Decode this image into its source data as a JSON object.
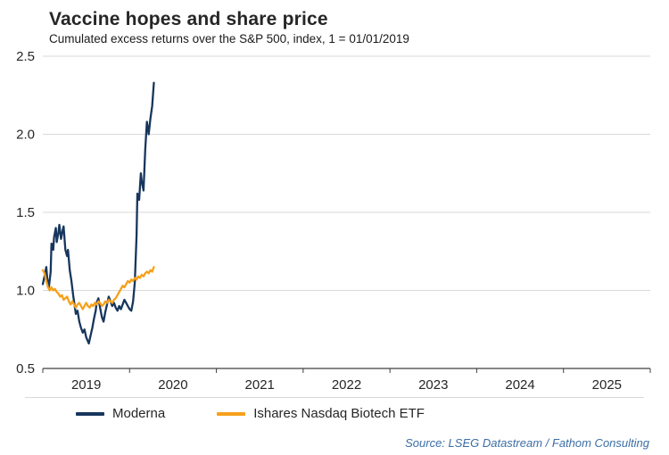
{
  "chart_data": {
    "type": "line",
    "title": "Vaccine hopes and share price",
    "subtitle": "Cumulated excess returns over the S&P 500, index, 1 = 01/01/2019",
    "source": "Source: LSEG Datastream / Fathom Consulting",
    "xlim": [
      2019,
      2026
    ],
    "ylim": [
      0.5,
      2.5
    ],
    "yticks": [
      0.5,
      1,
      1.5,
      2,
      2.5
    ],
    "xtick_labels": [
      "2019",
      "2020",
      "2021",
      "2022",
      "2023",
      "2024",
      "2025"
    ],
    "xtick_positions": [
      2019.5,
      2020.5,
      2021.5,
      2022.5,
      2023.5,
      2024.5,
      2025.5
    ],
    "grid": "horizontal-only",
    "legend_position": "bottom-left",
    "grid_color": "#d9d9d9",
    "axis_color": "#404040",
    "text_color": "#262626",
    "source_color": "#3b6ea5",
    "series": [
      {
        "name": "Moderna",
        "color": "#17365d",
        "points": [
          [
            2019.0,
            1.04
          ],
          [
            2019.02,
            1.09
          ],
          [
            2019.04,
            1.15
          ],
          [
            2019.05,
            1.08
          ],
          [
            2019.07,
            1.02
          ],
          [
            2019.09,
            1.12
          ],
          [
            2019.1,
            1.3
          ],
          [
            2019.12,
            1.26
          ],
          [
            2019.13,
            1.34
          ],
          [
            2019.15,
            1.4
          ],
          [
            2019.16,
            1.31
          ],
          [
            2019.18,
            1.37
          ],
          [
            2019.19,
            1.42
          ],
          [
            2019.21,
            1.33
          ],
          [
            2019.23,
            1.39
          ],
          [
            2019.24,
            1.41
          ],
          [
            2019.26,
            1.26
          ],
          [
            2019.28,
            1.22
          ],
          [
            2019.29,
            1.26
          ],
          [
            2019.31,
            1.13
          ],
          [
            2019.33,
            1.06
          ],
          [
            2019.35,
            0.97
          ],
          [
            2019.37,
            0.89
          ],
          [
            2019.38,
            0.85
          ],
          [
            2019.4,
            0.87
          ],
          [
            2019.42,
            0.8
          ],
          [
            2019.44,
            0.76
          ],
          [
            2019.46,
            0.73
          ],
          [
            2019.48,
            0.75
          ],
          [
            2019.5,
            0.7
          ],
          [
            2019.53,
            0.66
          ],
          [
            2019.55,
            0.71
          ],
          [
            2019.57,
            0.76
          ],
          [
            2019.59,
            0.82
          ],
          [
            2019.61,
            0.87
          ],
          [
            2019.62,
            0.92
          ],
          [
            2019.64,
            0.95
          ],
          [
            2019.66,
            0.89
          ],
          [
            2019.68,
            0.83
          ],
          [
            2019.7,
            0.8
          ],
          [
            2019.72,
            0.86
          ],
          [
            2019.74,
            0.91
          ],
          [
            2019.76,
            0.96
          ],
          [
            2019.78,
            0.93
          ],
          [
            2019.8,
            0.9
          ],
          [
            2019.82,
            0.92
          ],
          [
            2019.84,
            0.89
          ],
          [
            2019.86,
            0.87
          ],
          [
            2019.88,
            0.9
          ],
          [
            2019.9,
            0.88
          ],
          [
            2019.92,
            0.91
          ],
          [
            2019.94,
            0.94
          ],
          [
            2019.96,
            0.92
          ],
          [
            2019.98,
            0.9
          ],
          [
            2020.0,
            0.88
          ],
          [
            2020.02,
            0.87
          ],
          [
            2020.04,
            0.93
          ],
          [
            2020.06,
            1.05
          ],
          [
            2020.08,
            1.35
          ],
          [
            2020.09,
            1.62
          ],
          [
            2020.11,
            1.58
          ],
          [
            2020.13,
            1.75
          ],
          [
            2020.14,
            1.7
          ],
          [
            2020.16,
            1.64
          ],
          [
            2020.18,
            1.9
          ],
          [
            2020.2,
            2.08
          ],
          [
            2020.22,
            2.0
          ],
          [
            2020.24,
            2.1
          ],
          [
            2020.26,
            2.18
          ],
          [
            2020.28,
            2.33
          ]
        ]
      },
      {
        "name": "Ishares Nasdaq Biotech ETF",
        "color": "#f6a01a",
        "points": [
          [
            2019.0,
            1.13
          ],
          [
            2019.02,
            1.11
          ],
          [
            2019.04,
            1.06
          ],
          [
            2019.06,
            1.02
          ],
          [
            2019.08,
            1.0
          ],
          [
            2019.1,
            1.02
          ],
          [
            2019.12,
            1.0
          ],
          [
            2019.14,
            1.01
          ],
          [
            2019.16,
            0.99
          ],
          [
            2019.18,
            0.98
          ],
          [
            2019.2,
            0.96
          ],
          [
            2019.22,
            0.97
          ],
          [
            2019.24,
            0.94
          ],
          [
            2019.26,
            0.95
          ],
          [
            2019.28,
            0.96
          ],
          [
            2019.3,
            0.93
          ],
          [
            2019.32,
            0.91
          ],
          [
            2019.34,
            0.93
          ],
          [
            2019.36,
            0.91
          ],
          [
            2019.38,
            0.89
          ],
          [
            2019.4,
            0.91
          ],
          [
            2019.42,
            0.92
          ],
          [
            2019.44,
            0.9
          ],
          [
            2019.46,
            0.88
          ],
          [
            2019.48,
            0.9
          ],
          [
            2019.5,
            0.92
          ],
          [
            2019.52,
            0.9
          ],
          [
            2019.54,
            0.89
          ],
          [
            2019.56,
            0.91
          ],
          [
            2019.58,
            0.9
          ],
          [
            2019.6,
            0.92
          ],
          [
            2019.62,
            0.91
          ],
          [
            2019.64,
            0.93
          ],
          [
            2019.66,
            0.92
          ],
          [
            2019.68,
            0.9
          ],
          [
            2019.7,
            0.91
          ],
          [
            2019.72,
            0.93
          ],
          [
            2019.74,
            0.92
          ],
          [
            2019.76,
            0.94
          ],
          [
            2019.78,
            0.93
          ],
          [
            2019.8,
            0.92
          ],
          [
            2019.82,
            0.94
          ],
          [
            2019.84,
            0.95
          ],
          [
            2019.86,
            0.97
          ],
          [
            2019.88,
            0.99
          ],
          [
            2019.9,
            1.01
          ],
          [
            2019.92,
            1.03
          ],
          [
            2019.94,
            1.02
          ],
          [
            2019.96,
            1.04
          ],
          [
            2019.98,
            1.06
          ],
          [
            2020.0,
            1.05
          ],
          [
            2020.02,
            1.07
          ],
          [
            2020.04,
            1.06
          ],
          [
            2020.06,
            1.08
          ],
          [
            2020.08,
            1.07
          ],
          [
            2020.1,
            1.09
          ],
          [
            2020.12,
            1.08
          ],
          [
            2020.14,
            1.1
          ],
          [
            2020.16,
            1.09
          ],
          [
            2020.18,
            1.11
          ],
          [
            2020.2,
            1.12
          ],
          [
            2020.22,
            1.11
          ],
          [
            2020.24,
            1.13
          ],
          [
            2020.26,
            1.12
          ],
          [
            2020.28,
            1.15
          ]
        ]
      }
    ]
  }
}
